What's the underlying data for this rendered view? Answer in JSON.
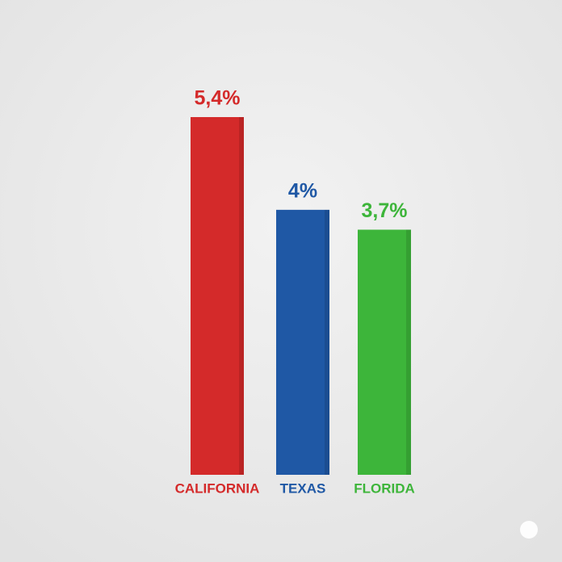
{
  "chart_data": {
    "type": "bar",
    "categories": [
      "CALIFORNIA",
      "TEXAS",
      "FLORIDA"
    ],
    "values": [
      5.4,
      4,
      3.7
    ],
    "value_labels": [
      "5,4%",
      "4%",
      "3,7%"
    ],
    "colors": [
      "#d42a2a",
      "#1f58a5",
      "#3db53a"
    ]
  }
}
